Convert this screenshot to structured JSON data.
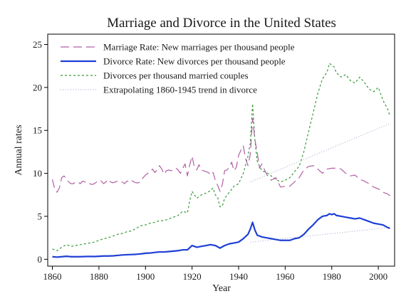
{
  "chart_data": {
    "type": "line",
    "title": "Marriage and Divorce in the United States",
    "xlabel": "Year",
    "ylabel": "Annual rates",
    "xlim": [
      1858,
      2007
    ],
    "ylim": [
      -0.8,
      26.2
    ],
    "xticks": [
      1860,
      1880,
      1900,
      1920,
      1940,
      1960,
      1980,
      2000
    ],
    "yticks": [
      0,
      5,
      10,
      15,
      20,
      25
    ],
    "grid": false,
    "legend_position": "top-left inside",
    "series": [
      {
        "name": "Marriage Rate: New marriages per thousand people",
        "color": "#b25fa6",
        "style": "longdash",
        "width": 1.2,
        "x": [
          1860,
          1861,
          1862,
          1863,
          1864,
          1865,
          1866,
          1867,
          1868,
          1869,
          1870,
          1871,
          1872,
          1873,
          1874,
          1875,
          1876,
          1877,
          1878,
          1879,
          1880,
          1881,
          1882,
          1883,
          1884,
          1885,
          1886,
          1887,
          1888,
          1889,
          1890,
          1891,
          1892,
          1893,
          1894,
          1895,
          1896,
          1897,
          1898,
          1899,
          1900,
          1901,
          1902,
          1903,
          1904,
          1905,
          1906,
          1907,
          1908,
          1909,
          1910,
          1911,
          1912,
          1913,
          1914,
          1915,
          1916,
          1917,
          1918,
          1919,
          1920,
          1921,
          1922,
          1923,
          1924,
          1925,
          1926,
          1927,
          1928,
          1929,
          1930,
          1931,
          1932,
          1933,
          1934,
          1935,
          1936,
          1937,
          1938,
          1939,
          1940,
          1941,
          1942,
          1943,
          1944,
          1945,
          1946,
          1947,
          1948,
          1949,
          1950,
          1952,
          1954,
          1956,
          1958,
          1960,
          1962,
          1964,
          1966,
          1968,
          1970,
          1972,
          1974,
          1976,
          1978,
          1980,
          1982,
          1984,
          1986,
          1988,
          1990,
          1992,
          1994,
          1996,
          1998,
          2000,
          2002,
          2004,
          2005
        ],
        "y": [
          9.3,
          8.2,
          7.8,
          8.3,
          9.5,
          9.7,
          9.4,
          9.0,
          8.8,
          8.8,
          9.0,
          9.0,
          8.8,
          9.1,
          9.0,
          8.8,
          8.8,
          8.7,
          8.8,
          9.0,
          9.2,
          9.1,
          8.8,
          9.0,
          9.3,
          9.0,
          8.9,
          9.0,
          9.1,
          9.0,
          9.0,
          8.8,
          9.1,
          9.0,
          9.2,
          9.0,
          8.9,
          8.9,
          9.1,
          9.5,
          9.8,
          10.0,
          10.2,
          10.5,
          10.1,
          10.4,
          10.9,
          10.5,
          9.9,
          10.3,
          10.4,
          10.3,
          10.5,
          10.6,
          10.4,
          10.0,
          10.6,
          11.1,
          9.7,
          11.0,
          12.0,
          10.7,
          10.4,
          11.0,
          10.4,
          10.3,
          10.2,
          10.1,
          9.8,
          10.1,
          9.2,
          8.6,
          7.9,
          8.7,
          10.3,
          10.4,
          10.7,
          11.3,
          10.3,
          10.7,
          12.1,
          12.7,
          13.2,
          11.7,
          10.9,
          12.2,
          16.4,
          13.9,
          12.4,
          10.6,
          11.1,
          9.9,
          9.2,
          9.5,
          8.4,
          8.5,
          8.5,
          9.0,
          9.5,
          10.4,
          10.8,
          10.9,
          10.5,
          10.0,
          10.5,
          10.6,
          10.6,
          10.5,
          10.0,
          9.7,
          9.8,
          9.3,
          9.1,
          8.8,
          8.4,
          8.2,
          7.8,
          7.6,
          7.4
        ]
      },
      {
        "name": "Divorce Rate: New divorces per thousand people",
        "color": "#1f3fd6",
        "style": "solid",
        "width": 2.2,
        "x": [
          1860,
          1862,
          1864,
          1866,
          1868,
          1870,
          1872,
          1874,
          1876,
          1878,
          1880,
          1882,
          1884,
          1886,
          1888,
          1890,
          1892,
          1894,
          1896,
          1898,
          1900,
          1902,
          1904,
          1906,
          1908,
          1910,
          1912,
          1914,
          1916,
          1918,
          1920,
          1922,
          1924,
          1926,
          1928,
          1930,
          1932,
          1934,
          1936,
          1938,
          1940,
          1942,
          1944,
          1945,
          1946,
          1947,
          1948,
          1950,
          1952,
          1954,
          1956,
          1958,
          1960,
          1962,
          1964,
          1966,
          1968,
          1970,
          1972,
          1974,
          1976,
          1978,
          1979,
          1980,
          1981,
          1982,
          1984,
          1986,
          1988,
          1990,
          1992,
          1994,
          1996,
          1998,
          2000,
          2002,
          2004,
          2005
        ],
        "y": [
          0.3,
          0.25,
          0.3,
          0.35,
          0.3,
          0.3,
          0.3,
          0.32,
          0.33,
          0.32,
          0.35,
          0.38,
          0.38,
          0.4,
          0.45,
          0.5,
          0.53,
          0.55,
          0.58,
          0.63,
          0.7,
          0.73,
          0.8,
          0.85,
          0.85,
          0.9,
          0.95,
          1.0,
          1.1,
          1.1,
          1.6,
          1.4,
          1.5,
          1.6,
          1.7,
          1.6,
          1.3,
          1.6,
          1.8,
          1.9,
          2.0,
          2.4,
          2.9,
          3.5,
          4.3,
          3.4,
          2.8,
          2.6,
          2.5,
          2.4,
          2.3,
          2.2,
          2.2,
          2.2,
          2.4,
          2.5,
          2.9,
          3.5,
          4.0,
          4.6,
          5.0,
          5.1,
          5.3,
          5.2,
          5.3,
          5.1,
          5.0,
          4.9,
          4.8,
          4.7,
          4.8,
          4.6,
          4.4,
          4.2,
          4.1,
          4.0,
          3.7,
          3.6
        ]
      },
      {
        "name": "Divorces per thousand married couples",
        "color": "#3a9a3a",
        "style": "shortdash",
        "width": 1.2,
        "x": [
          1860,
          1862,
          1864,
          1866,
          1868,
          1870,
          1872,
          1874,
          1876,
          1878,
          1880,
          1882,
          1884,
          1886,
          1888,
          1890,
          1892,
          1894,
          1896,
          1898,
          1900,
          1902,
          1904,
          1906,
          1908,
          1910,
          1912,
          1914,
          1916,
          1918,
          1919,
          1920,
          1922,
          1924,
          1926,
          1928,
          1929,
          1930,
          1931,
          1932,
          1933,
          1934,
          1936,
          1938,
          1940,
          1942,
          1944,
          1945,
          1946,
          1947,
          1948,
          1950,
          1952,
          1954,
          1956,
          1958,
          1960,
          1962,
          1964,
          1966,
          1968,
          1970,
          1972,
          1974,
          1976,
          1978,
          1979,
          1980,
          1981,
          1982,
          1984,
          1986,
          1988,
          1990,
          1992,
          1994,
          1996,
          1998,
          2000,
          2002,
          2004,
          2005
        ],
        "y": [
          1.2,
          1.0,
          1.4,
          1.7,
          1.5,
          1.6,
          1.7,
          1.8,
          1.9,
          2.0,
          2.2,
          2.4,
          2.5,
          2.7,
          2.9,
          3.0,
          3.2,
          3.3,
          3.6,
          3.9,
          4.0,
          4.2,
          4.3,
          4.5,
          4.5,
          4.7,
          4.9,
          5.1,
          5.6,
          5.4,
          6.8,
          7.9,
          7.1,
          7.5,
          7.7,
          8.0,
          8.3,
          7.5,
          7.2,
          6.1,
          6.2,
          7.1,
          7.8,
          8.5,
          8.8,
          10.0,
          12.0,
          13.5,
          18.1,
          13.8,
          11.4,
          10.3,
          10.1,
          9.7,
          9.3,
          9.0,
          9.2,
          9.5,
          10.2,
          10.8,
          12.5,
          14.8,
          17.0,
          19.3,
          21.0,
          21.8,
          22.8,
          22.6,
          22.4,
          21.7,
          21.2,
          21.5,
          20.8,
          20.5,
          21.2,
          20.6,
          19.8,
          19.5,
          20.0,
          18.5,
          17.5,
          16.7
        ]
      },
      {
        "name": "Extrapolating 1860-1945 trend in divorce",
        "color": "#a0a0cc",
        "style": "dotted",
        "width": 1.0,
        "x": [
          1945,
          2005
        ],
        "y": [
          2.0,
          3.7
        ],
        "x2": [
          1945,
          2005
        ],
        "y2": [
          9.0,
          15.8
        ]
      }
    ]
  }
}
